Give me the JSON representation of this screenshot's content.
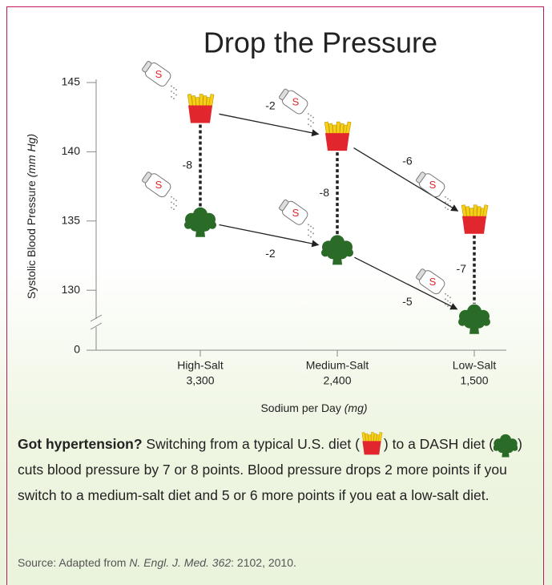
{
  "chart_data": {
    "type": "diet-icons",
    "title": "Drop the Pressure",
    "y_label": "Systolic Blood Pressure",
    "y_label_unit": "(mm Hg)",
    "x_label": "Sodium per Day",
    "x_label_unit": "(mg)",
    "categories": [
      "High-Salt",
      "Medium-Salt",
      "Low-Salt"
    ],
    "category_sodium": [
      {
        "value": 3300,
        "label": "3,300"
      },
      {
        "value": 2400,
        "label": "2,400"
      },
      {
        "value": 1500,
        "label": "1,500"
      }
    ],
    "ylim": [
      127,
      145
    ],
    "yticks": [
      0,
      130,
      135,
      140,
      145
    ],
    "axis_break": true,
    "series": [
      {
        "icon": "fries",
        "color": "#e1262d",
        "values": [
          143,
          141,
          135
        ],
        "changes": [
          "-2",
          "-6"
        ]
      },
      {
        "icon": "broccoli",
        "color": "#2b6b28",
        "values": [
          135,
          133,
          128
        ],
        "changes": [
          "-2",
          "-5"
        ]
      }
    ],
    "diet_changes": [
      "-8",
      "-8",
      "-7"
    ]
  },
  "caption": {
    "lead": "Got hypertension?",
    "parts": [
      " Switching from a typical U.S. diet (",
      ") to a DASH diet (",
      ") cuts blood pressure by 7 or 8 points. Blood pressure drops 2 more points if you switch to a medium-salt diet and 5 or 6 more points if you eat a low-salt diet."
    ]
  },
  "source": {
    "prefix": "Source: Adapted from ",
    "journal": "N. Engl. J. Med. 362",
    "suffix": ": 2102, 2010."
  }
}
